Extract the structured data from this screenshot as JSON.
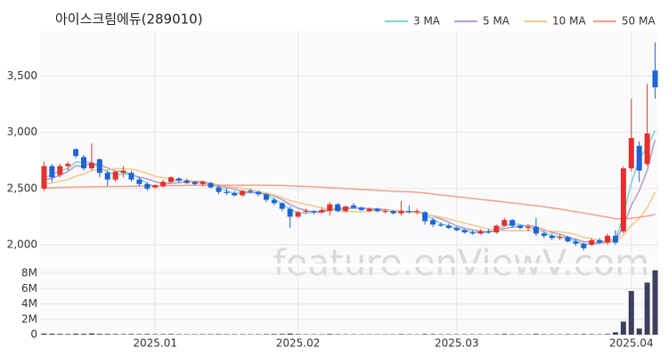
{
  "chart_data": {
    "type": "candlestick",
    "title": "아이스크림에듀(289010)",
    "watermark": "feature.enViewV.com",
    "categories": [
      null,
      null,
      null,
      null,
      null,
      null,
      null,
      null,
      null,
      null,
      null,
      null,
      null,
      null,
      "2025.01",
      null,
      null,
      null,
      null,
      null,
      null,
      null,
      null,
      null,
      null,
      null,
      null,
      null,
      null,
      null,
      null,
      null,
      "2025.02",
      null,
      null,
      null,
      null,
      null,
      null,
      null,
      null,
      null,
      null,
      null,
      null,
      null,
      null,
      null,
      null,
      null,
      null,
      null,
      "2025.03",
      null,
      null,
      null,
      null,
      null,
      null,
      null,
      null,
      null,
      null,
      null,
      null,
      null,
      null,
      null,
      null,
      null,
      null,
      null,
      null,
      null,
      "2025.04",
      null,
      null,
      null
    ],
    "open": [
      2500,
      2700,
      2620,
      2700,
      2850,
      2780,
      2680,
      2760,
      2640,
      2580,
      2640,
      2640,
      2580,
      2540,
      2510,
      2520,
      2560,
      2590,
      2570,
      2560,
      2540,
      2550,
      2510,
      2470,
      2460,
      2440,
      2480,
      2470,
      2450,
      2400,
      2370,
      2320,
      2250,
      2300,
      2300,
      2290,
      2300,
      2360,
      2300,
      2350,
      2330,
      2300,
      2320,
      2300,
      2300,
      2280,
      2300,
      2290,
      2290,
      2220,
      2180,
      2170,
      2150,
      2130,
      2110,
      2100,
      2120,
      2110,
      2170,
      2220,
      2170,
      2150,
      2160,
      2100,
      2080,
      2060,
      2070,
      2030,
      2010,
      2000,
      2040,
      2020,
      2080,
      2120,
      2680,
      2880,
      2720,
      3550
    ],
    "high": [
      2740,
      2720,
      2720,
      2740,
      2860,
      2800,
      2900,
      2770,
      2660,
      2660,
      2700,
      2660,
      2600,
      2560,
      2540,
      2580,
      2610,
      2600,
      2590,
      2570,
      2570,
      2560,
      2530,
      2500,
      2480,
      2490,
      2500,
      2480,
      2460,
      2420,
      2380,
      2340,
      2300,
      2320,
      2310,
      2330,
      2380,
      2370,
      2350,
      2370,
      2340,
      2330,
      2330,
      2320,
      2310,
      2390,
      2350,
      2320,
      2300,
      2240,
      2200,
      2190,
      2160,
      2140,
      2130,
      2140,
      2140,
      2180,
      2240,
      2230,
      2180,
      2180,
      2240,
      2120,
      2100,
      2090,
      2080,
      2050,
      2020,
      2060,
      2060,
      2100,
      2130,
      2700,
      3300,
      2920,
      3430,
      3800
    ],
    "low": [
      2480,
      2560,
      2600,
      2660,
      2770,
      2660,
      2660,
      2600,
      2520,
      2560,
      2600,
      2560,
      2520,
      2480,
      2500,
      2510,
      2550,
      2550,
      2540,
      2530,
      2520,
      2500,
      2450,
      2440,
      2430,
      2430,
      2460,
      2430,
      2380,
      2350,
      2300,
      2150,
      2240,
      2280,
      2270,
      2280,
      2260,
      2290,
      2290,
      2320,
      2300,
      2290,
      2290,
      2280,
      2270,
      2260,
      2280,
      2270,
      2180,
      2160,
      2160,
      2140,
      2120,
      2100,
      2090,
      2090,
      2100,
      2100,
      2160,
      2150,
      2140,
      2120,
      2080,
      2060,
      2040,
      2040,
      2020,
      1990,
      1950,
      1990,
      2010,
      2000,
      2000,
      2100,
      2650,
      2560,
      2700,
      3300
    ],
    "close": [
      2700,
      2600,
      2700,
      2720,
      2790,
      2680,
      2730,
      2640,
      2580,
      2650,
      2660,
      2580,
      2540,
      2500,
      2530,
      2560,
      2600,
      2570,
      2550,
      2540,
      2560,
      2510,
      2470,
      2460,
      2440,
      2480,
      2470,
      2450,
      2400,
      2370,
      2320,
      2250,
      2290,
      2300,
      2290,
      2310,
      2360,
      2300,
      2340,
      2330,
      2310,
      2320,
      2300,
      2300,
      2280,
      2300,
      2290,
      2300,
      2210,
      2180,
      2170,
      2150,
      2130,
      2110,
      2100,
      2120,
      2110,
      2170,
      2220,
      2170,
      2150,
      2160,
      2100,
      2080,
      2060,
      2070,
      2030,
      2010,
      1970,
      2040,
      2020,
      2080,
      2020,
      2680,
      2950,
      2660,
      2990,
      3400
    ],
    "up_color": "#e5302c",
    "down_color": "#1f63d6",
    "ylim": [
      1850,
      3900
    ],
    "yticks": [
      {
        "value": 2000,
        "label": "2,000"
      },
      {
        "value": 2500,
        "label": "2,500"
      },
      {
        "value": 3000,
        "label": "3,000"
      },
      {
        "value": 3500,
        "label": "3,500"
      }
    ],
    "grid": true,
    "series": [
      {
        "name": "3 MA",
        "color": "#7fd3d0",
        "values": [
          2600,
          2620,
          2667,
          2673,
          2737,
          2730,
          2733,
          2683,
          2650,
          2623,
          2630,
          2630,
          2593,
          2540,
          2523,
          2530,
          2563,
          2577,
          2573,
          2553,
          2550,
          2537,
          2513,
          2480,
          2457,
          2460,
          2463,
          2467,
          2440,
          2407,
          2363,
          2313,
          2287,
          2280,
          2293,
          2300,
          2320,
          2323,
          2333,
          2323,
          2327,
          2320,
          2310,
          2307,
          2293,
          2293,
          2290,
          2297,
          2267,
          2230,
          2187,
          2167,
          2150,
          2130,
          2113,
          2110,
          2110,
          2133,
          2167,
          2187,
          2180,
          2160,
          2137,
          2113,
          2080,
          2070,
          2053,
          2037,
          2003,
          2007,
          2010,
          2047,
          2040,
          2260,
          2550,
          2763,
          2867,
          3017
        ]
      },
      {
        "name": "5 MA",
        "color": "#b59ac9",
        "values": [
          2580,
          2590,
          2620,
          2650,
          2702,
          2698,
          2724,
          2712,
          2684,
          2656,
          2652,
          2622,
          2602,
          2586,
          2562,
          2542,
          2546,
          2552,
          2562,
          2564,
          2564,
          2546,
          2526,
          2508,
          2496,
          2472,
          2464,
          2460,
          2448,
          2434,
          2402,
          2358,
          2326,
          2306,
          2290,
          2288,
          2310,
          2312,
          2320,
          2328,
          2328,
          2320,
          2320,
          2312,
          2302,
          2300,
          2294,
          2294,
          2276,
          2256,
          2230,
          2202,
          2168,
          2148,
          2132,
          2122,
          2114,
          2122,
          2144,
          2158,
          2164,
          2174,
          2160,
          2132,
          2110,
          2094,
          2068,
          2050,
          2028,
          2024,
          2014,
          2024,
          2026,
          2168,
          2350,
          2482,
          2660,
          2936
        ]
      },
      {
        "name": "10 MA",
        "color": "#f0c98a",
        "values": [
          2540,
          2550,
          2565,
          2580,
          2610,
          2630,
          2660,
          2670,
          2665,
          2679,
          2675,
          2673,
          2657,
          2635,
          2609,
          2597,
          2584,
          2577,
          2574,
          2563,
          2553,
          2546,
          2533,
          2522,
          2511,
          2503,
          2490,
          2475,
          2460,
          2443,
          2419,
          2393,
          2375,
          2360,
          2345,
          2328,
          2317,
          2302,
          2296,
          2296,
          2295,
          2301,
          2302,
          2301,
          2300,
          2295,
          2288,
          2288,
          2275,
          2260,
          2246,
          2229,
          2212,
          2193,
          2175,
          2157,
          2141,
          2130,
          2125,
          2126,
          2124,
          2128,
          2127,
          2124,
          2121,
          2115,
          2107,
          2091,
          2066,
          2053,
          2040,
          2032,
          2024,
          2085,
          2173,
          2232,
          2328,
          2467
        ]
      },
      {
        "name": "50 MA",
        "color": "#f2a08e",
        "values": [
          2505,
          2508,
          2510,
          2512,
          2514,
          2515,
          2516,
          2517,
          2518,
          2519,
          2520,
          2521,
          2522,
          2523,
          2524,
          2525,
          2526,
          2527,
          2528,
          2529,
          2530,
          2530,
          2530,
          2530,
          2530,
          2530,
          2530,
          2530,
          2529,
          2528,
          2527,
          2525,
          2522,
          2519,
          2516,
          2512,
          2508,
          2504,
          2500,
          2496,
          2492,
          2488,
          2484,
          2480,
          2477,
          2474,
          2471,
          2467,
          2460,
          2452,
          2444,
          2436,
          2428,
          2420,
          2412,
          2404,
          2396,
          2388,
          2380,
          2372,
          2364,
          2356,
          2348,
          2338,
          2328,
          2318,
          2306,
          2294,
          2282,
          2270,
          2258,
          2246,
          2232,
          2230,
          2236,
          2245,
          2255,
          2270
        ]
      }
    ],
    "volume": {
      "color": "#3d3f5e",
      "ylim": [
        0,
        8600000
      ],
      "yticks": [
        0,
        {
          "value": 2000000,
          "label": "2M"
        },
        {
          "value": 4000000,
          "label": "4M"
        },
        {
          "value": 6000000,
          "label": "6M"
        },
        {
          "value": 8000000,
          "label": "8M"
        }
      ],
      "values": [
        150000,
        120000,
        100000,
        90000,
        130000,
        110000,
        160000,
        100000,
        90000,
        80000,
        70000,
        80000,
        70000,
        80000,
        60000,
        70000,
        80000,
        60000,
        50000,
        50000,
        60000,
        60000,
        70000,
        60000,
        50000,
        60000,
        50000,
        50000,
        70000,
        80000,
        90000,
        150000,
        70000,
        50000,
        50000,
        50000,
        90000,
        60000,
        50000,
        50000,
        40000,
        40000,
        40000,
        40000,
        40000,
        70000,
        50000,
        40000,
        80000,
        70000,
        50000,
        50000,
        50000,
        50000,
        50000,
        50000,
        40000,
        60000,
        90000,
        60000,
        50000,
        50000,
        90000,
        60000,
        50000,
        50000,
        60000,
        60000,
        80000,
        60000,
        50000,
        80000,
        300000,
        1700000,
        5700000,
        800000,
        6800000,
        8400000
      ]
    }
  }
}
